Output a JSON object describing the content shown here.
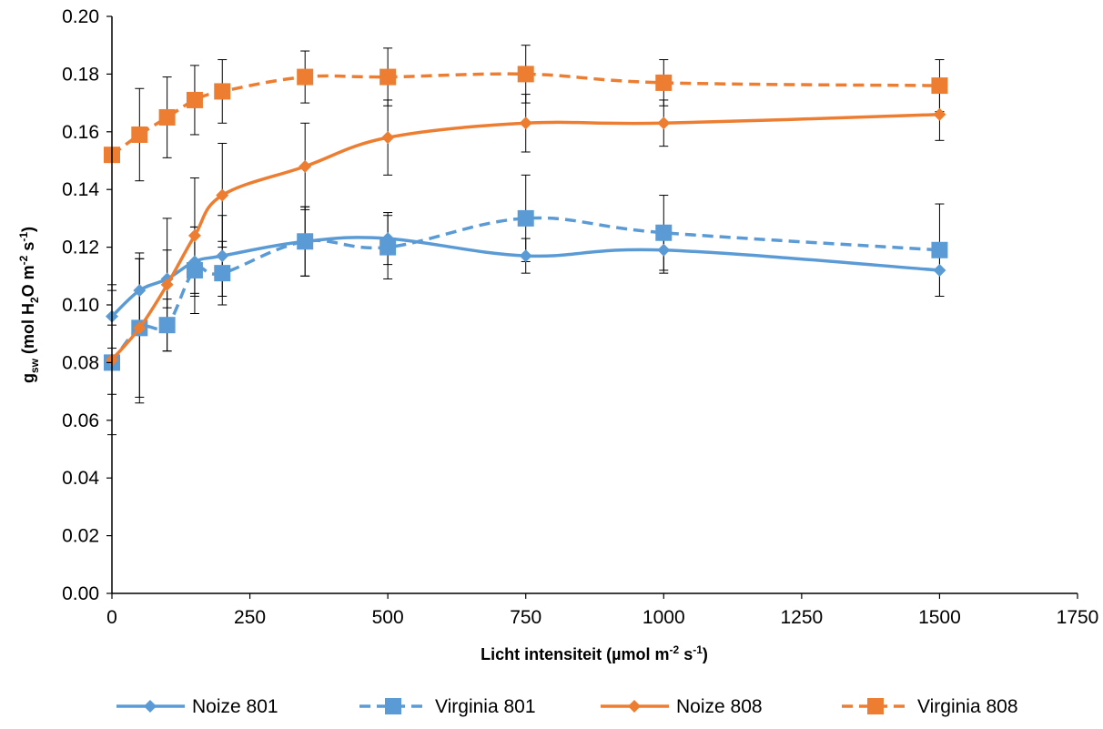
{
  "chart_data": {
    "type": "line",
    "x_axis": {
      "label_prefix": "Licht intensiteit (µmol m",
      "label_exp1": "-2",
      "label_mid": " s",
      "label_exp2": "-1",
      "label_suffix": ")",
      "ticks": [
        "0",
        "250",
        "500",
        "750",
        "1000",
        "1250",
        "1500",
        "1750"
      ],
      "range": [
        0,
        1750
      ]
    },
    "y_axis": {
      "label_g": "g",
      "label_sub": "sw",
      "label_rest1": " (mol H",
      "label_sub2": "2",
      "label_rest2": "O m",
      "label_exp1": "-2",
      "label_rest3": " s",
      "label_exp2": "-1",
      "label_rest4": ")",
      "ticks": [
        "0.00",
        "0.02",
        "0.04",
        "0.06",
        "0.08",
        "0.10",
        "0.12",
        "0.14",
        "0.16",
        "0.18",
        "0.20"
      ],
      "range": [
        0,
        0.2
      ]
    },
    "grid": false,
    "legend_position": "bottom",
    "x": [
      0,
      50,
      100,
      150,
      200,
      350,
      500,
      750,
      1000,
      1500
    ],
    "series": [
      {
        "name": "Noize 801",
        "color": "#5B9BD5",
        "marker": "diamond",
        "dash": "solid",
        "values": [
          0.096,
          0.105,
          0.109,
          0.115,
          0.117,
          0.122,
          0.123,
          0.117,
          0.119,
          0.112
        ],
        "errors": [
          0.011,
          0.011,
          0.01,
          0.012,
          0.014,
          0.012,
          0.009,
          0.006,
          0.008,
          0.009
        ]
      },
      {
        "name": "Virginia 801",
        "color": "#5B9BD5",
        "marker": "square",
        "dash": "dashed",
        "values": [
          0.08,
          0.092,
          0.093,
          0.112,
          0.111,
          0.122,
          0.12,
          0.13,
          0.125,
          0.119
        ],
        "errors": [
          0.025,
          0.026,
          0.009,
          0.015,
          0.011,
          0.012,
          0.011,
          0.015,
          0.013,
          0.016
        ]
      },
      {
        "name": "Noize 808",
        "color": "#ED7D31",
        "marker": "diamond",
        "dash": "solid",
        "values": [
          0.081,
          0.092,
          0.107,
          0.124,
          0.138,
          0.148,
          0.158,
          0.163,
          0.163,
          0.166
        ],
        "errors": [
          0.012,
          0.024,
          0.023,
          0.02,
          0.018,
          0.015,
          0.013,
          0.01,
          0.008,
          0.009
        ]
      },
      {
        "name": "Virginia 808",
        "color": "#ED7D31",
        "marker": "square",
        "dash": "dashed",
        "values": [
          0.152,
          0.159,
          0.165,
          0.171,
          0.174,
          0.179,
          0.179,
          0.18,
          0.177,
          0.176
        ],
        "errors": [
          0.0,
          0.016,
          0.014,
          0.012,
          0.011,
          0.009,
          0.01,
          0.01,
          0.008,
          0.009
        ]
      }
    ]
  }
}
